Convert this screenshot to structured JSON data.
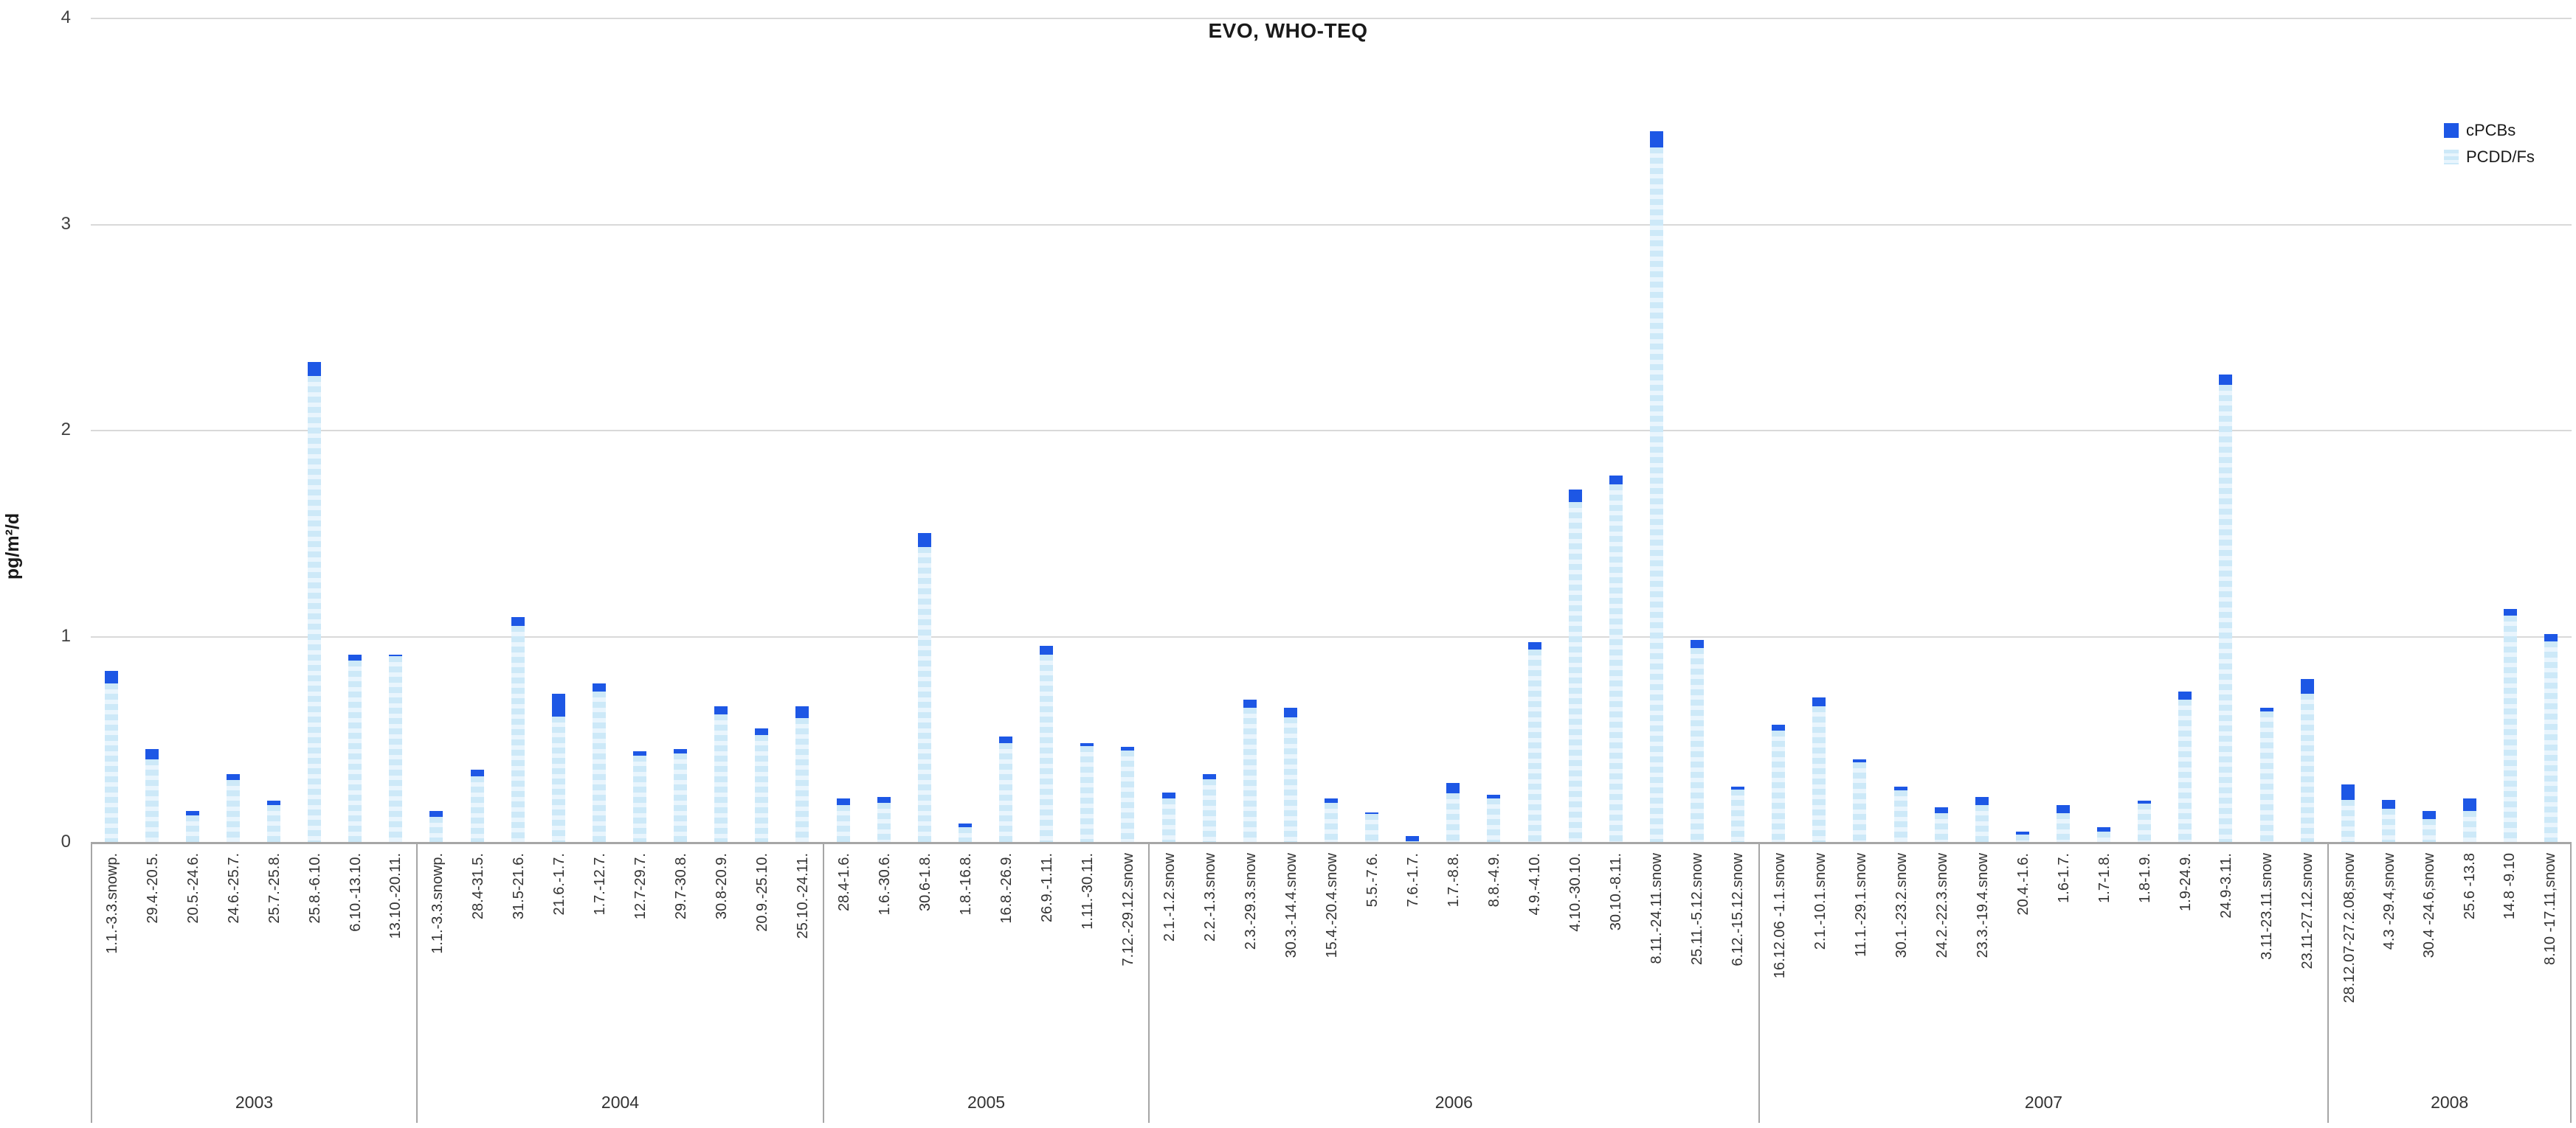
{
  "title": "EVO, WHO-TEQ",
  "y_axis": {
    "label": "pg/m²/d",
    "ticks": [
      0,
      1,
      2,
      3,
      4
    ],
    "max": 4
  },
  "legend": [
    {
      "label": "cPCBs",
      "swatch": "solid"
    },
    {
      "label": "PCDD/Fs",
      "swatch": "striped"
    }
  ],
  "colors": {
    "cpcb": "#1d57e5",
    "pcdd_base": "#cde9f8",
    "pcdd_stripe": "#e9f5fd",
    "grid": "#d9d9d9",
    "axis": "#a6a6a6"
  },
  "chart_data": {
    "type": "bar",
    "stacked": true,
    "title": "EVO, WHO-TEQ",
    "xlabel": "",
    "ylabel": "pg/m²/d",
    "ylim": [
      0,
      4
    ],
    "grid": true,
    "legend_position": "right-inside",
    "series_order": [
      "PCDD/Fs",
      "cPCBs"
    ],
    "groups": [
      {
        "year": "2003",
        "bars": [
          {
            "label": "1.1.-3.3.snowp.",
            "pcdd": 0.77,
            "cpcb": 0.06
          },
          {
            "label": "29.4.-20.5.",
            "pcdd": 0.4,
            "cpcb": 0.05
          },
          {
            "label": "20.5.-24.6.",
            "pcdd": 0.13,
            "cpcb": 0.02
          },
          {
            "label": "24.6.-25.7.",
            "pcdd": 0.3,
            "cpcb": 0.03
          },
          {
            "label": "25.7.-25.8.",
            "pcdd": 0.18,
            "cpcb": 0.02
          },
          {
            "label": "25.8.-6.10.",
            "pcdd": 2.26,
            "cpcb": 0.07
          },
          {
            "label": "6.10.-13.10.",
            "pcdd": 0.88,
            "cpcb": 0.03
          },
          {
            "label": "13.10.-20.11.",
            "pcdd": 0.9,
            "cpcb": 0.01
          }
        ]
      },
      {
        "year": "2004",
        "bars": [
          {
            "label": "1.1.-3.3.snowp.",
            "pcdd": 0.12,
            "cpcb": 0.03
          },
          {
            "label": "28.4-31.5.",
            "pcdd": 0.32,
            "cpcb": 0.03
          },
          {
            "label": "31.5-21.6.",
            "pcdd": 1.05,
            "cpcb": 0.04
          },
          {
            "label": "21.6.-1.7.",
            "pcdd": 0.61,
            "cpcb": 0.11
          },
          {
            "label": "1.7.-12.7.",
            "pcdd": 0.73,
            "cpcb": 0.04
          },
          {
            "label": "12.7-29.7.",
            "pcdd": 0.42,
            "cpcb": 0.02
          },
          {
            "label": "29.7-30.8.",
            "pcdd": 0.43,
            "cpcb": 0.02
          },
          {
            "label": "30.8-20.9.",
            "pcdd": 0.62,
            "cpcb": 0.04
          },
          {
            "label": "20.9.-25.10.",
            "pcdd": 0.52,
            "cpcb": 0.03
          },
          {
            "label": "25.10.-24.11.",
            "pcdd": 0.6,
            "cpcb": 0.06
          }
        ]
      },
      {
        "year": "2005",
        "bars": [
          {
            "label": "28.4-1.6.",
            "pcdd": 0.18,
            "cpcb": 0.03
          },
          {
            "label": "1.6.-30.6.",
            "pcdd": 0.19,
            "cpcb": 0.03
          },
          {
            "label": "30.6-1.8.",
            "pcdd": 1.43,
            "cpcb": 0.07
          },
          {
            "label": "1.8.-16.8.",
            "pcdd": 0.07,
            "cpcb": 0.02
          },
          {
            "label": "16.8.-26.9.",
            "pcdd": 0.48,
            "cpcb": 0.03
          },
          {
            "label": "26.9.-1.11.",
            "pcdd": 0.91,
            "cpcb": 0.04
          },
          {
            "label": "1.11.-30.11.",
            "pcdd": 0.465,
            "cpcb": 0.015
          },
          {
            "label": "7.12.-29.12.snow",
            "pcdd": 0.445,
            "cpcb": 0.015
          }
        ]
      },
      {
        "year": "2006",
        "bars": [
          {
            "label": "2.1.-1.2.snow",
            "pcdd": 0.21,
            "cpcb": 0.03
          },
          {
            "label": "2.2.-1.3.snow",
            "pcdd": 0.305,
            "cpcb": 0.025
          },
          {
            "label": "2.3.-29.3.snow",
            "pcdd": 0.65,
            "cpcb": 0.04
          },
          {
            "label": "30.3.-14.4.snow",
            "pcdd": 0.605,
            "cpcb": 0.045
          },
          {
            "label": "15.4.-20.4.snow",
            "pcdd": 0.19,
            "cpcb": 0.02
          },
          {
            "label": "5.5.-7.6.",
            "pcdd": 0.135,
            "cpcb": 0.01
          },
          {
            "label": "7.6.-1.7.",
            "pcdd": 0.005,
            "cpcb": 0.025
          },
          {
            "label": "1.7.-8.8.",
            "pcdd": 0.235,
            "cpcb": 0.05
          },
          {
            "label": "8.8.-4.9.",
            "pcdd": 0.21,
            "cpcb": 0.02
          },
          {
            "label": "4.9.-4.10.",
            "pcdd": 0.935,
            "cpcb": 0.035
          },
          {
            "label": "4.10.-30.10.",
            "pcdd": 1.65,
            "cpcb": 0.06
          },
          {
            "label": "30.10.-8.11.",
            "pcdd": 1.735,
            "cpcb": 0.045
          },
          {
            "label": "8.11.-24.11.snow",
            "pcdd": 3.37,
            "cpcb": 0.08
          },
          {
            "label": "25.11.-5.12.snow",
            "pcdd": 0.94,
            "cpcb": 0.04
          },
          {
            "label": "6.12.-15.12.snow",
            "pcdd": 0.255,
            "cpcb": 0.015
          }
        ]
      },
      {
        "year": "2007",
        "bars": [
          {
            "label": "16.12.06 -1.1.snow",
            "pcdd": 0.54,
            "cpcb": 0.03
          },
          {
            "label": "2.1.-10.1.snow",
            "pcdd": 0.66,
            "cpcb": 0.04
          },
          {
            "label": "11.1.-29.1.snow",
            "pcdd": 0.385,
            "cpcb": 0.015
          },
          {
            "label": "30.1.-23.2.snow",
            "pcdd": 0.25,
            "cpcb": 0.02
          },
          {
            "label": "24.2.-22.3.snow",
            "pcdd": 0.14,
            "cpcb": 0.03
          },
          {
            "label": "23.3.-19.4.snow",
            "pcdd": 0.18,
            "cpcb": 0.04
          },
          {
            "label": "20.4.-1.6.",
            "pcdd": 0.035,
            "cpcb": 0.015
          },
          {
            "label": "1.6-1.7.",
            "pcdd": 0.14,
            "cpcb": 0.04
          },
          {
            "label": "1.7-1.8.",
            "pcdd": 0.05,
            "cpcb": 0.02
          },
          {
            "label": "1.8-1.9.",
            "pcdd": 0.185,
            "cpcb": 0.015
          },
          {
            "label": "1.9-24.9.",
            "pcdd": 0.69,
            "cpcb": 0.04
          },
          {
            "label": "24.9-3.11.",
            "pcdd": 2.22,
            "cpcb": 0.05
          },
          {
            "label": "3.11-23.11.snow",
            "pcdd": 0.635,
            "cpcb": 0.015
          },
          {
            "label": "23.11-27.12.snow",
            "pcdd": 0.72,
            "cpcb": 0.07
          }
        ]
      },
      {
        "year": "2008",
        "bars": [
          {
            "label": "28.12.07-27.2.08,snow",
            "pcdd": 0.205,
            "cpcb": 0.075
          },
          {
            "label": "4.3 -29.4,snow",
            "pcdd": 0.16,
            "cpcb": 0.045
          },
          {
            "label": "30.4 -24.6,snow",
            "pcdd": 0.11,
            "cpcb": 0.04
          },
          {
            "label": "25.6 -13.8",
            "pcdd": 0.15,
            "cpcb": 0.06
          },
          {
            "label": "14.8 -9.10",
            "pcdd": 1.1,
            "cpcb": 0.03
          },
          {
            "label": "8.10 -17.11,snow",
            "pcdd": 0.975,
            "cpcb": 0.035
          }
        ]
      }
    ]
  }
}
